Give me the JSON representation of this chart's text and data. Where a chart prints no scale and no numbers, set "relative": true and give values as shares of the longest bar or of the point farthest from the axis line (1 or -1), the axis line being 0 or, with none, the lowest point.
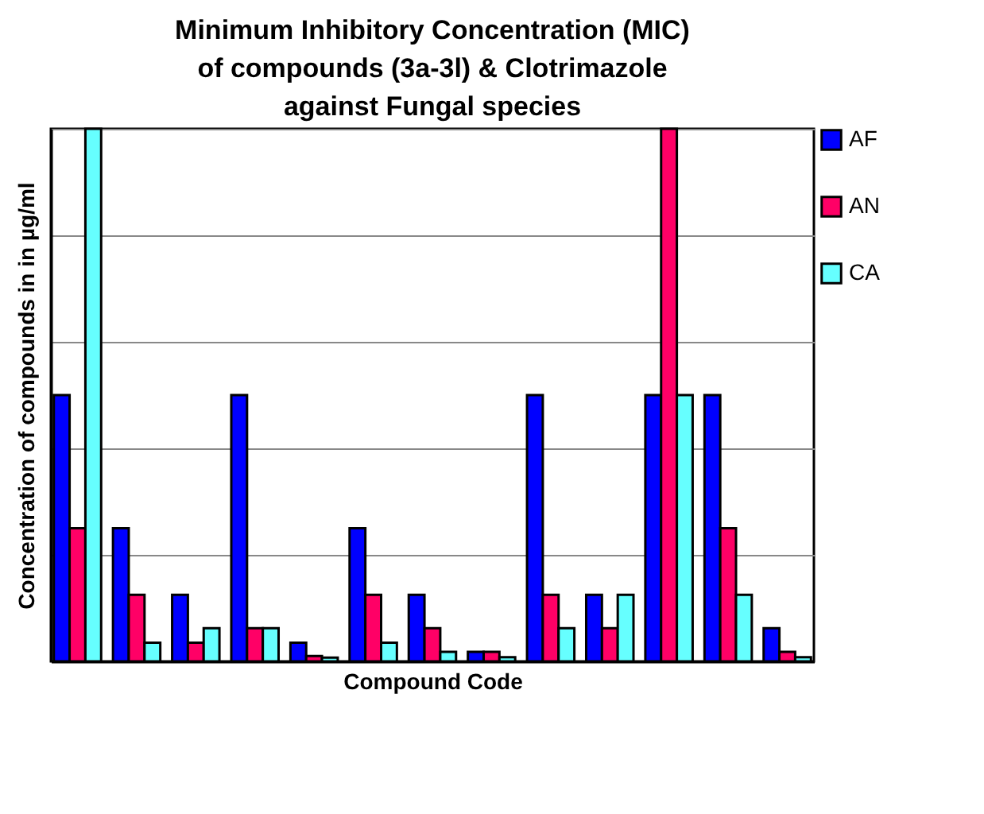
{
  "chart_data": {
    "type": "bar",
    "title": "Minimum Inhibitory Concentration (MIC) of compounds (3a-3l) & Clotrimazole against Fungal species",
    "xlabel": "Compound Code",
    "ylabel": "Concentration of compounds in in µg/ml",
    "relative": true,
    "grid": "y",
    "legend": "top right",
    "tick_labels": false,
    "categories": [
      null,
      null,
      null,
      null,
      null,
      null,
      null,
      null,
      null,
      null,
      null,
      null,
      null
    ],
    "series": [
      {
        "name": "AF",
        "color": "#0000ff",
        "values": [
          0.5,
          0.25,
          0.125,
          0.5,
          0.035,
          0.25,
          0.125,
          0.018,
          0.5,
          0.125,
          0.5,
          0.5,
          0.0625
        ]
      },
      {
        "name": "AN",
        "color": "#ff0066",
        "values": [
          0.25,
          0.125,
          0.035,
          0.0625,
          0.01,
          0.125,
          0.0625,
          0.018,
          0.125,
          0.0625,
          1,
          0.25,
          0.018
        ]
      },
      {
        "name": "CA",
        "color": "#66ffff",
        "values": [
          1,
          0.035,
          0.0625,
          0.0625,
          0.007,
          0.035,
          0.018,
          0.008,
          0.0625,
          0.125,
          0.5,
          0.125,
          0.008
        ]
      }
    ]
  }
}
